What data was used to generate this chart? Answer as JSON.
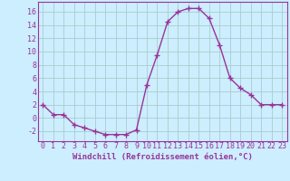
{
  "x": [
    0,
    1,
    2,
    3,
    4,
    5,
    6,
    7,
    8,
    9,
    10,
    11,
    12,
    13,
    14,
    15,
    16,
    17,
    18,
    19,
    20,
    21,
    22,
    23
  ],
  "y": [
    2,
    0.5,
    0.5,
    -1,
    -1.5,
    -2,
    -2.5,
    -2.5,
    -2.5,
    -1.8,
    5,
    9.5,
    14.5,
    16,
    16.5,
    16.5,
    15,
    11,
    6,
    4.5,
    3.5,
    2,
    2,
    2
  ],
  "line_color": "#993399",
  "marker": "+",
  "marker_size": 4,
  "bg_color": "#cceeff",
  "grid_color": "#aacccc",
  "xlabel": "Windchill (Refroidissement éolien,°C)",
  "xlabel_fontsize": 6.5,
  "xtick_labels": [
    "0",
    "1",
    "2",
    "3",
    "4",
    "5",
    "6",
    "7",
    "8",
    "9",
    "10",
    "11",
    "12",
    "13",
    "14",
    "15",
    "16",
    "17",
    "18",
    "19",
    "20",
    "21",
    "22",
    "23"
  ],
  "ytick_labels": [
    "-2",
    "0",
    "2",
    "4",
    "6",
    "8",
    "10",
    "12",
    "14",
    "16"
  ],
  "ylim": [
    -3.5,
    17.5
  ],
  "xlim": [
    -0.5,
    23.5
  ],
  "yticks": [
    -2,
    0,
    2,
    4,
    6,
    8,
    10,
    12,
    14,
    16
  ],
  "tick_fontsize": 6,
  "line_width": 1.0,
  "marker_edge_width": 1.0
}
